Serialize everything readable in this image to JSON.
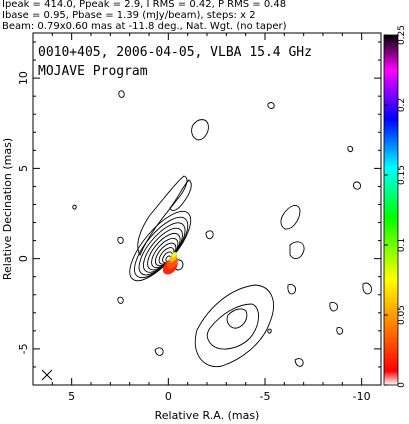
{
  "header": {
    "line1": "Ipeak = 414.0, Ppeak = 2.9, I RMS = 0.42, P RMS = 0.48",
    "line2": "Ibase = 0.95, Pbase = 1.39 (mJy/beam), steps: x 2",
    "line3": "Beam: 0.79x0.60 mas at -11.8 deg., Nat. Wgt. (no taper)"
  },
  "plot": {
    "source_label": "0010+405, 2006-04-05, VLBA 15.4 GHz",
    "program_label": "MOJAVE Program"
  },
  "chart_data": {
    "type": "contour",
    "xlabel": "Relative R.A. (mas)",
    "ylabel": "Relative Decination (mas)",
    "xlim": [
      7,
      -11
    ],
    "ylim": [
      -7,
      12.5
    ],
    "xticks": [
      5,
      0,
      -5,
      -10
    ],
    "xtick_labels": [
      "5",
      "0",
      "-5",
      "-10"
    ],
    "yticks": [
      -5,
      0,
      5,
      10
    ],
    "ytick_labels": [
      "-5",
      "0",
      "5",
      "10"
    ],
    "grid": false,
    "colorbar": {
      "range": [
        0,
        0.25
      ],
      "ticks": [
        0,
        0.05,
        0.1,
        0.15,
        0.2,
        0.25
      ],
      "tick_labels": [
        "0",
        "0.05",
        "0.1",
        "0.15",
        "0.2",
        "0.25"
      ],
      "colors": [
        "#ffffff",
        "#ff0000",
        "#ffff00",
        "#00ff00",
        "#00ffff",
        "#0000ff",
        "#ff00ff",
        "#000000"
      ]
    },
    "core": {
      "x": 0,
      "y": 0
    },
    "peak_intensity_mJy_per_beam": 414.0,
    "base_contour_mJy_per_beam": 0.95,
    "contour_step": 2,
    "beam": {
      "major_mas": 0.79,
      "minor_mas": 0.6,
      "pa_deg": -11.8
    }
  }
}
